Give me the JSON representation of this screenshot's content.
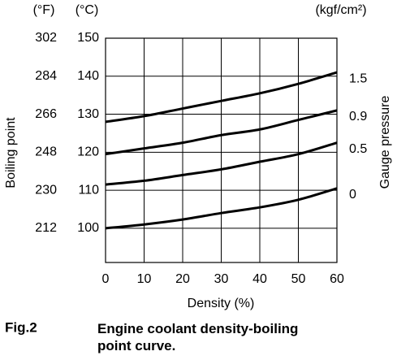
{
  "chart_data": {
    "type": "line",
    "unit_f": "(°F)",
    "unit_c": "(°C)",
    "unit_right": "(kgf/cm²)",
    "ylabel": "Boiling point",
    "y2label": "Gauge pressure",
    "xlabel": "Density (%)",
    "caption_number": "Fig.2",
    "caption": "Engine coolant density-boiling point curve.",
    "x": [
      0,
      10,
      20,
      30,
      40,
      50,
      60
    ],
    "xlim": [
      0,
      60
    ],
    "xticks": [
      0,
      10,
      20,
      30,
      40,
      50,
      60
    ],
    "ylim": [
      91,
      150
    ],
    "yticks": [
      100,
      110,
      120,
      130,
      140,
      150
    ],
    "yticks_f": [
      212,
      230,
      248,
      266,
      284,
      302
    ],
    "grid": true,
    "series": [
      {
        "name": "1.5",
        "color": "#000000",
        "values": [
          128,
          129.5,
          131.5,
          133.5,
          135.5,
          138,
          141
        ]
      },
      {
        "name": "0.9",
        "color": "#000000",
        "values": [
          119.5,
          121,
          122.5,
          124.5,
          126,
          128.5,
          131
        ]
      },
      {
        "name": "0.5",
        "color": "#000000",
        "values": [
          111.5,
          112.5,
          114,
          115.5,
          117.5,
          119.5,
          122.5
        ]
      },
      {
        "name": "0",
        "color": "#000000",
        "values": [
          100,
          101,
          102.3,
          104,
          105.5,
          107.5,
          110.5
        ]
      }
    ]
  }
}
